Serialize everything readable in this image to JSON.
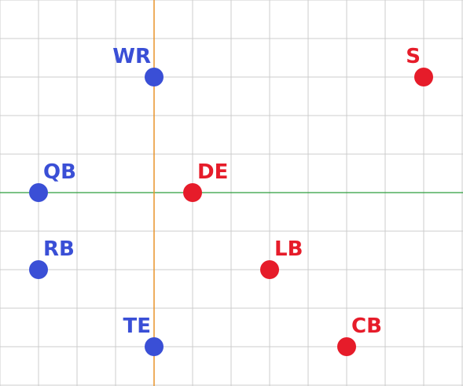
{
  "grid": {
    "x_range": [
      -4,
      8
    ],
    "y_range": [
      -5,
      5
    ],
    "grid_color": "#cccccc",
    "x_axis_line_color": "#2e9e3e",
    "y_axis_line_color": "#e8942a"
  },
  "colors": {
    "offense": "#3a4fd6",
    "defense": "#e61c2a"
  },
  "players": [
    {
      "label": "WR",
      "team": "offense",
      "x": 0,
      "y": 3,
      "label_side": "left"
    },
    {
      "label": "QB",
      "team": "offense",
      "x": -3,
      "y": 0,
      "label_side": "right"
    },
    {
      "label": "RB",
      "team": "offense",
      "x": -3,
      "y": -2,
      "label_side": "right"
    },
    {
      "label": "TE",
      "team": "offense",
      "x": 0,
      "y": -4,
      "label_side": "left"
    },
    {
      "label": "S",
      "team": "defense",
      "x": 7,
      "y": 3,
      "label_side": "left"
    },
    {
      "label": "DE",
      "team": "defense",
      "x": 1,
      "y": 0,
      "label_side": "right"
    },
    {
      "label": "LB",
      "team": "defense",
      "x": 3,
      "y": -2,
      "label_side": "right"
    },
    {
      "label": "CB",
      "team": "defense",
      "x": 5,
      "y": -4,
      "label_side": "right"
    }
  ]
}
